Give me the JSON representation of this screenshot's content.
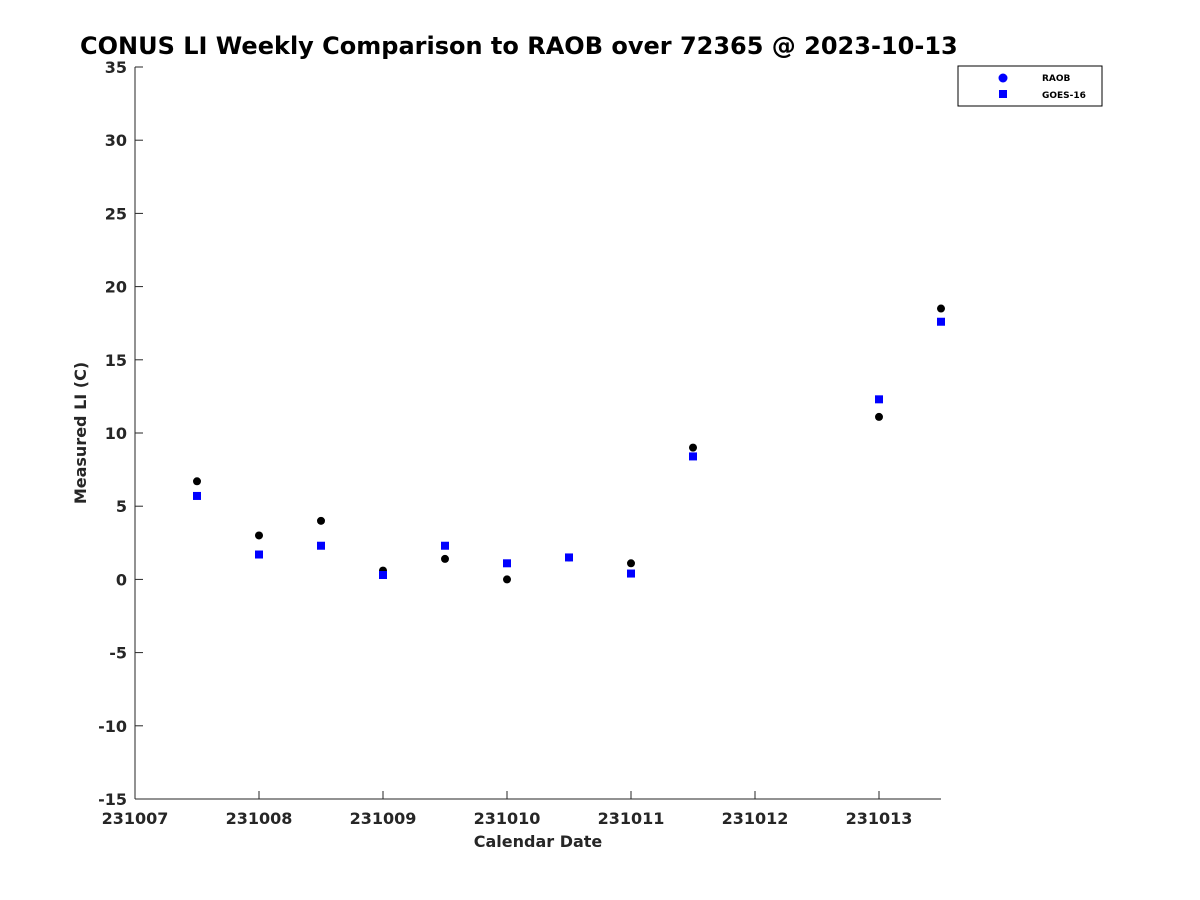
{
  "chart_data": {
    "type": "scatter",
    "title": "CONUS LI Weekly Comparison to RAOB over 72365 @ 2023-10-13",
    "xlabel": "Calendar Date",
    "ylabel": "Measured LI (C)",
    "xlim": [
      231007,
      231013.5
    ],
    "ylim": [
      -15,
      35
    ],
    "xticks": [
      231007,
      231008,
      231009,
      231010,
      231011,
      231012,
      231013
    ],
    "xtick_labels": [
      "231007",
      "231008",
      "231009",
      "231010",
      "231011",
      "231012",
      "231013"
    ],
    "yticks": [
      -15,
      -10,
      -5,
      0,
      5,
      10,
      15,
      20,
      25,
      30,
      35
    ],
    "ytick_labels": [
      "-15",
      "-10",
      "-5",
      "0",
      "5",
      "10",
      "15",
      "20",
      "25",
      "30",
      "35"
    ],
    "grid": false,
    "legend_position": "top-right",
    "series": [
      {
        "name": "RAOB",
        "marker": "circle",
        "color": "#000000",
        "legend_color": "#0000ff",
        "x": [
          231007.5,
          231008,
          231008.5,
          231009,
          231009.5,
          231010,
          231010.5,
          231011,
          231011.5,
          231013,
          231013.5
        ],
        "y": [
          6.7,
          3.0,
          4.0,
          0.6,
          1.4,
          0.0,
          1.5,
          1.1,
          9.0,
          11.1,
          18.5
        ]
      },
      {
        "name": "GOES-16",
        "marker": "square",
        "color": "#0000ff",
        "legend_color": "#0000ff",
        "x": [
          231007.5,
          231008,
          231008.5,
          231009,
          231009.5,
          231010,
          231010.5,
          231011,
          231011.5,
          231013,
          231013.5
        ],
        "y": [
          5.7,
          1.7,
          2.3,
          0.3,
          2.3,
          1.1,
          1.5,
          0.4,
          8.4,
          12.3,
          17.6
        ]
      }
    ]
  }
}
